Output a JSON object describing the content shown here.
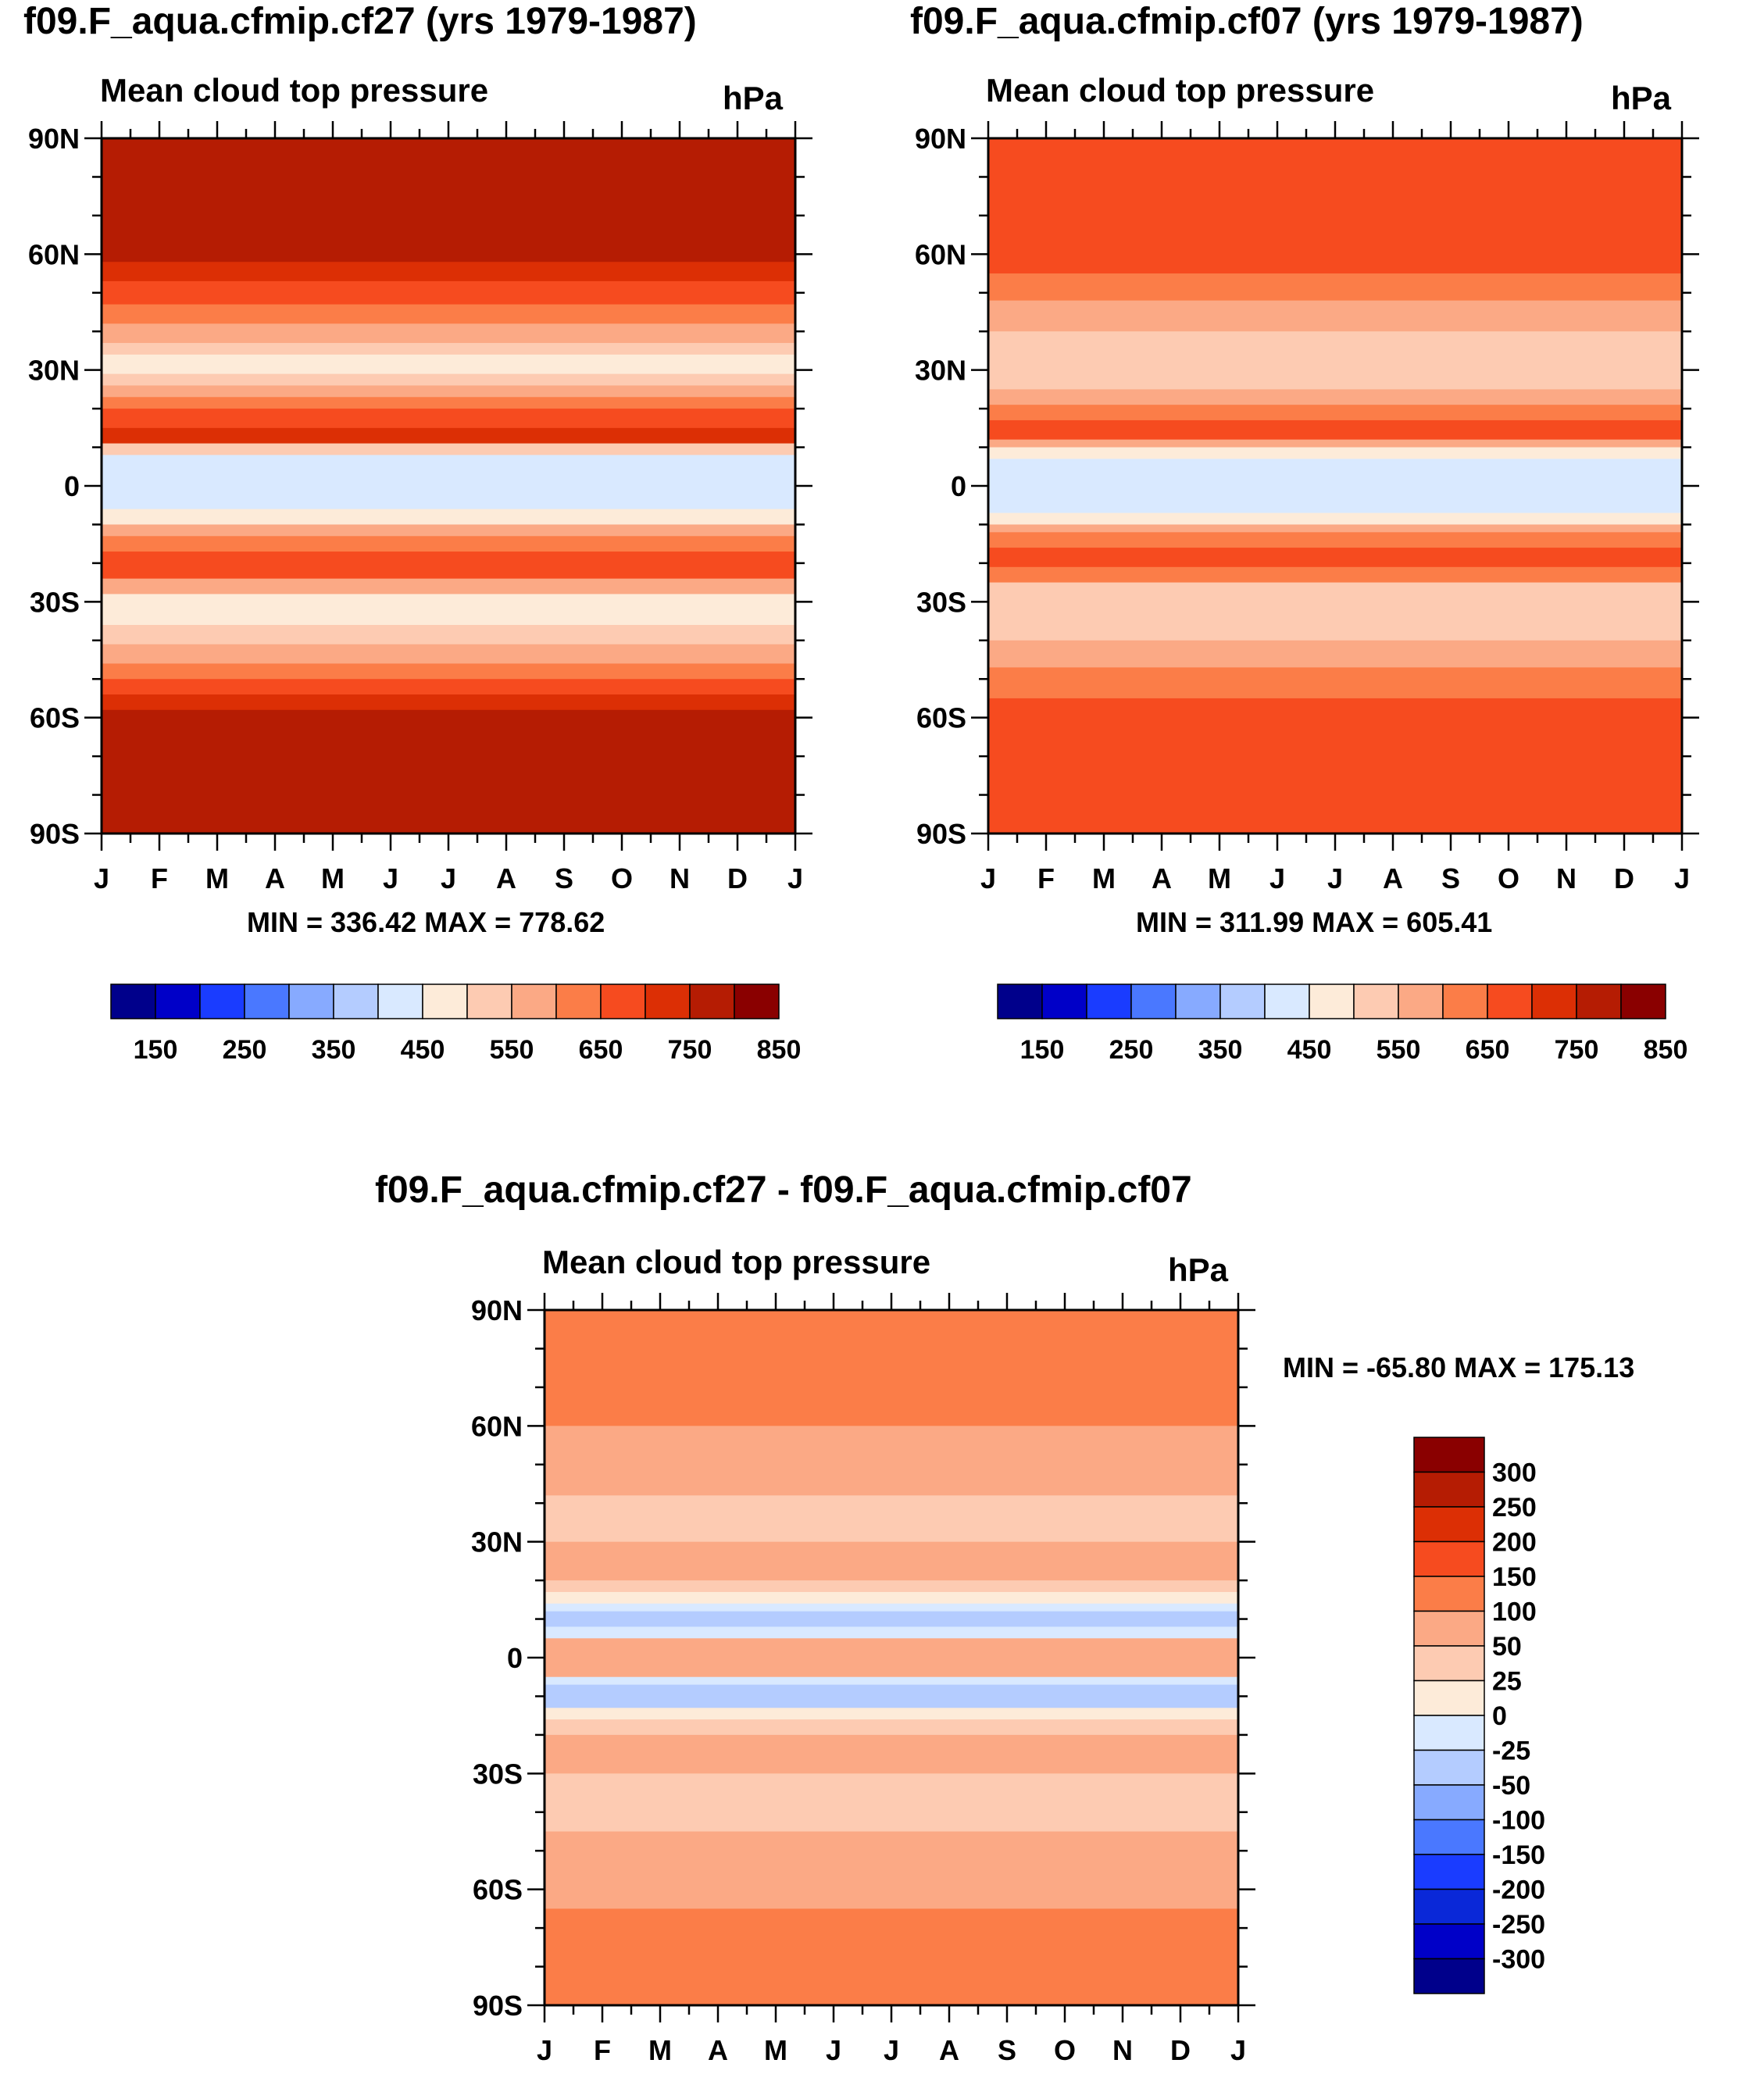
{
  "chart_data": [
    {
      "type": "heatmap",
      "title": "f09.F_aqua.cfmip.cf27 (yrs 1979-1987)",
      "subtitle": "Mean cloud top pressure",
      "units": "hPa",
      "minmax": "MIN = 336.42 MAX = 778.62",
      "x_ticks": [
        "J",
        "F",
        "M",
        "A",
        "M",
        "J",
        "J",
        "A",
        "S",
        "O",
        "N",
        "D",
        "J"
      ],
      "y_ticks": [
        "90N",
        "60N",
        "30N",
        "0",
        "30S",
        "60S",
        "90S"
      ],
      "ylim": [
        -90,
        90
      ],
      "bands": [
        {
          "from": 90,
          "to": 58,
          "value": 700
        },
        {
          "from": 58,
          "to": 53,
          "value": 650
        },
        {
          "from": 53,
          "to": 47,
          "value": 600
        },
        {
          "from": 47,
          "to": 42,
          "value": 550
        },
        {
          "from": 42,
          "to": 37,
          "value": 500
        },
        {
          "from": 37,
          "to": 34,
          "value": 450
        },
        {
          "from": 34,
          "to": 29,
          "value": 400
        },
        {
          "from": 29,
          "to": 26,
          "value": 450
        },
        {
          "from": 26,
          "to": 23,
          "value": 500
        },
        {
          "from": 23,
          "to": 20,
          "value": 550
        },
        {
          "from": 20,
          "to": 15,
          "value": 600
        },
        {
          "from": 15,
          "to": 11,
          "value": 650
        },
        {
          "from": 11,
          "to": 8,
          "value": 450
        },
        {
          "from": 8,
          "to": -6,
          "value": 350
        },
        {
          "from": -6,
          "to": -10,
          "value": 400
        },
        {
          "from": -10,
          "to": -13,
          "value": 500
        },
        {
          "from": -13,
          "to": -17,
          "value": 550
        },
        {
          "from": -17,
          "to": -24,
          "value": 600
        },
        {
          "from": -24,
          "to": -28,
          "value": 500
        },
        {
          "from": -28,
          "to": -36,
          "value": 400
        },
        {
          "from": -36,
          "to": -41,
          "value": 450
        },
        {
          "from": -41,
          "to": -46,
          "value": 500
        },
        {
          "from": -46,
          "to": -50,
          "value": 550
        },
        {
          "from": -50,
          "to": -54,
          "value": 600
        },
        {
          "from": -54,
          "to": -58,
          "value": 650
        },
        {
          "from": -58,
          "to": -90,
          "value": 700
        }
      ],
      "colorbar": {
        "labels": [
          "150",
          "250",
          "350",
          "450",
          "550",
          "650",
          "750",
          "850"
        ],
        "colors": [
          "#00008b",
          "#0000c8",
          "#1a3cff",
          "#4a78ff",
          "#87aaff",
          "#b4ccff",
          "#d9e9ff",
          "#fdebd9",
          "#fdcbb2",
          "#fba985",
          "#fb7d48",
          "#f64b1f",
          "#dc2f05",
          "#b51c03",
          "#8a0000"
        ]
      }
    },
    {
      "type": "heatmap",
      "title": "f09.F_aqua.cfmip.cf07 (yrs 1979-1987)",
      "subtitle": "Mean cloud top pressure",
      "units": "hPa",
      "minmax": "MIN = 311.99 MAX = 605.41",
      "x_ticks": [
        "J",
        "F",
        "M",
        "A",
        "M",
        "J",
        "J",
        "A",
        "S",
        "O",
        "N",
        "D",
        "J"
      ],
      "y_ticks": [
        "90N",
        "60N",
        "30N",
        "0",
        "30S",
        "60S",
        "90S"
      ],
      "ylim": [
        -90,
        90
      ],
      "bands": [
        {
          "from": 90,
          "to": 55,
          "value": 600
        },
        {
          "from": 55,
          "to": 48,
          "value": 550
        },
        {
          "from": 48,
          "to": 40,
          "value": 500
        },
        {
          "from": 40,
          "to": 25,
          "value": 450
        },
        {
          "from": 25,
          "to": 21,
          "value": 500
        },
        {
          "from": 21,
          "to": 17,
          "value": 550
        },
        {
          "from": 17,
          "to": 12,
          "value": 600
        },
        {
          "from": 12,
          "to": 10,
          "value": 500
        },
        {
          "from": 10,
          "to": 7,
          "value": 400
        },
        {
          "from": 7,
          "to": -7,
          "value": 350
        },
        {
          "from": -7,
          "to": -10,
          "value": 400
        },
        {
          "from": -10,
          "to": -12,
          "value": 500
        },
        {
          "from": -12,
          "to": -16,
          "value": 550
        },
        {
          "from": -16,
          "to": -21,
          "value": 600
        },
        {
          "from": -21,
          "to": -25,
          "value": 550
        },
        {
          "from": -25,
          "to": -40,
          "value": 450
        },
        {
          "from": -40,
          "to": -47,
          "value": 500
        },
        {
          "from": -47,
          "to": -55,
          "value": 550
        },
        {
          "from": -55,
          "to": -90,
          "value": 600
        }
      ],
      "colorbar": {
        "labels": [
          "150",
          "250",
          "350",
          "450",
          "550",
          "650",
          "750",
          "850"
        ],
        "colors": [
          "#00008b",
          "#0000c8",
          "#1a3cff",
          "#4a78ff",
          "#87aaff",
          "#b4ccff",
          "#d9e9ff",
          "#fdebd9",
          "#fdcbb2",
          "#fba985",
          "#fb7d48",
          "#f64b1f",
          "#dc2f05",
          "#b51c03",
          "#8a0000"
        ]
      }
    },
    {
      "type": "heatmap",
      "title": "f09.F_aqua.cfmip.cf27 - f09.F_aqua.cfmip.cf07",
      "subtitle": "Mean cloud top pressure",
      "units": "hPa",
      "minmax": "MIN = -65.80 MAX = 175.13",
      "x_ticks": [
        "J",
        "F",
        "M",
        "A",
        "M",
        "J",
        "J",
        "A",
        "S",
        "O",
        "N",
        "D",
        "J"
      ],
      "y_ticks": [
        "90N",
        "60N",
        "30N",
        "0",
        "30S",
        "60S",
        "90S"
      ],
      "ylim": [
        -90,
        90
      ],
      "bands": [
        {
          "from": 90,
          "to": 60,
          "value": 125
        },
        {
          "from": 60,
          "to": 42,
          "value": 75
        },
        {
          "from": 42,
          "to": 30,
          "value": 37
        },
        {
          "from": 30,
          "to": 20,
          "value": 75
        },
        {
          "from": 20,
          "to": 17,
          "value": 37
        },
        {
          "from": 17,
          "to": 14,
          "value": 12
        },
        {
          "from": 14,
          "to": 12,
          "value": -12
        },
        {
          "from": 12,
          "to": 8,
          "value": -37
        },
        {
          "from": 8,
          "to": 5,
          "value": -12
        },
        {
          "from": 5,
          "to": -5,
          "value": 75
        },
        {
          "from": -5,
          "to": -7,
          "value": -12
        },
        {
          "from": -7,
          "to": -13,
          "value": -37
        },
        {
          "from": -13,
          "to": -16,
          "value": 12
        },
        {
          "from": -16,
          "to": -20,
          "value": 37
        },
        {
          "from": -20,
          "to": -30,
          "value": 75
        },
        {
          "from": -30,
          "to": -45,
          "value": 37
        },
        {
          "from": -45,
          "to": -65,
          "value": 75
        },
        {
          "from": -65,
          "to": -90,
          "value": 125
        }
      ],
      "colorbar": {
        "labels": [
          "300",
          "250",
          "200",
          "150",
          "100",
          "50",
          "25",
          "0",
          "-25",
          "-50",
          "-100",
          "-150",
          "-200",
          "-250",
          "-300"
        ],
        "colors": [
          "#8a0000",
          "#b51c03",
          "#dc2f05",
          "#f64b1f",
          "#fb7d48",
          "#fba985",
          "#fdcbb2",
          "#fdebd9",
          "#d9e9ff",
          "#b4ccff",
          "#87aaff",
          "#4a78ff",
          "#1a3cff",
          "#0a28d8",
          "#0000c8",
          "#00008b"
        ]
      }
    }
  ]
}
